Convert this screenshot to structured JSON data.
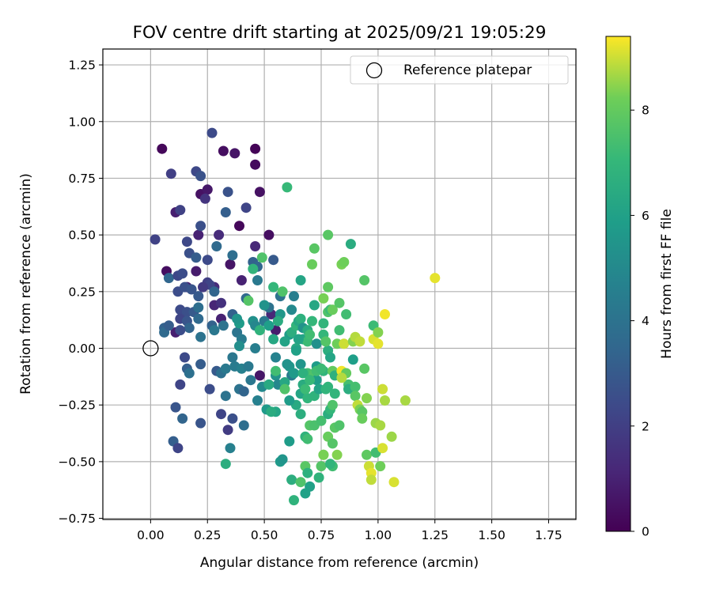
{
  "chart_data": {
    "type": "scatter",
    "title": "FOV centre drift starting at 2025/09/21 19:05:29",
    "xlabel": "Angular distance from reference (arcmin)",
    "ylabel": "Rotation from reference (arcmin)",
    "xlim": [
      -0.21,
      1.87
    ],
    "ylim": [
      -0.755,
      1.32
    ],
    "xticks": [
      0.0,
      0.25,
      0.5,
      0.75,
      1.0,
      1.25,
      1.5,
      1.75
    ],
    "xtick_labels": [
      "0.00",
      "0.25",
      "0.50",
      "0.75",
      "1.00",
      "1.25",
      "1.50",
      "1.75"
    ],
    "yticks": [
      -0.75,
      -0.5,
      -0.25,
      0.0,
      0.25,
      0.5,
      0.75,
      1.0,
      1.25
    ],
    "ytick_labels": [
      "−0.75",
      "−0.50",
      "−0.25",
      "0.00",
      "0.25",
      "0.50",
      "0.75",
      "1.00",
      "1.25"
    ],
    "grid": true,
    "legend": {
      "location": "top-right",
      "entries": [
        "Reference platepar"
      ]
    },
    "reference_point": {
      "x": 0.0,
      "y": 0.0,
      "marker": "open-circle"
    },
    "colorbar": {
      "label": "Hours from first FF file",
      "colormap": "viridis",
      "range": [
        0,
        9.4
      ],
      "ticks": [
        0,
        2,
        4,
        6,
        8
      ],
      "tick_labels": [
        "0",
        "2",
        "4",
        "6",
        "8"
      ]
    },
    "points_format": [
      "x",
      "y",
      "hours"
    ],
    "points": [
      [
        0.05,
        0.88,
        0.2
      ],
      [
        0.32,
        0.87,
        0.4
      ],
      [
        0.37,
        0.86,
        0.6
      ],
      [
        0.46,
        0.81,
        0.3
      ],
      [
        0.46,
        0.88,
        0.1
      ],
      [
        0.48,
        0.69,
        0.5
      ],
      [
        0.39,
        0.54,
        0.2
      ],
      [
        0.22,
        0.68,
        0.5
      ],
      [
        0.25,
        0.7,
        0.7
      ],
      [
        0.52,
        0.5,
        0.4
      ],
      [
        0.07,
        0.34,
        0.4
      ],
      [
        0.11,
        0.6,
        0.9
      ],
      [
        0.2,
        0.34,
        0.8
      ],
      [
        0.16,
        0.27,
        1.0
      ],
      [
        0.28,
        0.27,
        1.3
      ],
      [
        0.35,
        0.37,
        0.6
      ],
      [
        0.21,
        0.5,
        1.0
      ],
      [
        0.3,
        0.5,
        1.3
      ],
      [
        0.46,
        0.45,
        1.2
      ],
      [
        0.28,
        0.19,
        1.1
      ],
      [
        0.31,
        0.13,
        1.0
      ],
      [
        0.11,
        0.07,
        0.9
      ],
      [
        0.48,
        -0.12,
        0.6
      ],
      [
        0.4,
        0.3,
        1.0
      ],
      [
        0.53,
        0.15,
        1.2
      ],
      [
        0.55,
        0.08,
        0.8
      ],
      [
        0.27,
        0.95,
        2.4
      ],
      [
        0.09,
        0.77,
        2.0
      ],
      [
        0.2,
        0.78,
        2.3
      ],
      [
        0.22,
        0.76,
        2.7
      ],
      [
        0.13,
        0.61,
        2.1
      ],
      [
        0.24,
        0.66,
        1.6
      ],
      [
        0.34,
        0.69,
        2.7
      ],
      [
        0.42,
        0.62,
        2.2
      ],
      [
        0.22,
        0.54,
        2.6
      ],
      [
        0.33,
        0.6,
        3.2
      ],
      [
        0.02,
        0.48,
        2.1
      ],
      [
        0.16,
        0.47,
        2.3
      ],
      [
        0.17,
        0.42,
        2.6
      ],
      [
        0.2,
        0.4,
        3.1
      ],
      [
        0.25,
        0.39,
        2.4
      ],
      [
        0.29,
        0.45,
        3.6
      ],
      [
        0.36,
        0.41,
        3.8
      ],
      [
        0.45,
        0.38,
        3.3
      ],
      [
        0.47,
        0.36,
        3.5
      ],
      [
        0.54,
        0.39,
        3.0
      ],
      [
        0.08,
        0.31,
        3.5
      ],
      [
        0.12,
        0.32,
        2.3
      ],
      [
        0.14,
        0.33,
        2.5
      ],
      [
        0.12,
        0.25,
        2.5
      ],
      [
        0.15,
        0.27,
        2.6
      ],
      [
        0.18,
        0.26,
        2.8
      ],
      [
        0.21,
        0.23,
        3.0
      ],
      [
        0.25,
        0.29,
        2.0
      ],
      [
        0.26,
        0.28,
        2.2
      ],
      [
        0.28,
        0.25,
        3.4
      ],
      [
        0.31,
        0.2,
        1.5
      ],
      [
        0.36,
        0.15,
        3.3
      ],
      [
        0.42,
        0.22,
        3.6
      ],
      [
        0.47,
        0.3,
        4.3
      ],
      [
        0.13,
        0.17,
        2.4
      ],
      [
        0.16,
        0.16,
        2.6
      ],
      [
        0.19,
        0.16,
        3.0
      ],
      [
        0.21,
        0.18,
        3.8
      ],
      [
        0.13,
        0.13,
        2.2
      ],
      [
        0.16,
        0.12,
        2.8
      ],
      [
        0.21,
        0.13,
        3.6
      ],
      [
        0.06,
        0.09,
        3.3
      ],
      [
        0.06,
        0.07,
        3.6
      ],
      [
        0.22,
        0.05,
        4.0
      ],
      [
        0.27,
        0.1,
        3.3
      ],
      [
        0.28,
        0.08,
        4.2
      ],
      [
        0.32,
        0.1,
        4.0
      ],
      [
        0.38,
        0.07,
        4.1
      ],
      [
        0.4,
        0.04,
        4.4
      ],
      [
        0.15,
        -0.04,
        2.4
      ],
      [
        0.16,
        -0.09,
        3.2
      ],
      [
        0.17,
        -0.11,
        3.9
      ],
      [
        0.13,
        -0.16,
        2.2
      ],
      [
        0.22,
        -0.07,
        3.1
      ],
      [
        0.29,
        -0.1,
        3.0
      ],
      [
        0.31,
        -0.11,
        3.9
      ],
      [
        0.33,
        -0.09,
        4.3
      ],
      [
        0.37,
        -0.08,
        4.4
      ],
      [
        0.26,
        -0.18,
        2.5
      ],
      [
        0.33,
        -0.21,
        4.0
      ],
      [
        0.39,
        -0.18,
        4.0
      ],
      [
        0.41,
        -0.19,
        3.4
      ],
      [
        0.44,
        -0.14,
        4.2
      ],
      [
        0.47,
        -0.23,
        4.6
      ],
      [
        0.11,
        -0.26,
        2.8
      ],
      [
        0.1,
        -0.41,
        3.2
      ],
      [
        0.14,
        -0.31,
        3.4
      ],
      [
        0.12,
        -0.44,
        2.2
      ],
      [
        0.22,
        -0.33,
        2.8
      ],
      [
        0.31,
        -0.29,
        2.2
      ],
      [
        0.34,
        -0.36,
        1.9
      ],
      [
        0.36,
        -0.31,
        2.6
      ],
      [
        0.41,
        -0.34,
        3.8
      ],
      [
        0.35,
        -0.44,
        4.6
      ],
      [
        0.33,
        -0.51,
        6.6
      ],
      [
        0.39,
        0.01,
        5.2
      ],
      [
        0.39,
        0.11,
        5.8
      ],
      [
        0.43,
        0.21,
        7.7
      ],
      [
        0.45,
        0.12,
        5.3
      ],
      [
        0.46,
        0.1,
        4.9
      ],
      [
        0.45,
        0.35,
        6.9
      ],
      [
        0.46,
        0.0,
        4.5
      ],
      [
        0.48,
        0.08,
        6.8
      ],
      [
        0.49,
        0.4,
        7.6
      ],
      [
        0.52,
        0.18,
        4.0
      ],
      [
        0.54,
        0.27,
        7.0
      ],
      [
        0.54,
        0.04,
        6.3
      ],
      [
        0.55,
        -0.04,
        4.7
      ],
      [
        0.55,
        -0.12,
        5.4
      ],
      [
        0.56,
        -0.16,
        4.9
      ],
      [
        0.55,
        -0.1,
        7.3
      ],
      [
        0.55,
        -0.28,
        6.2
      ],
      [
        0.57,
        0.15,
        5.6
      ],
      [
        0.57,
        0.23,
        4.0
      ],
      [
        0.58,
        0.25,
        7.6
      ],
      [
        0.6,
        0.71,
        7.1
      ],
      [
        0.61,
        -0.08,
        5.6
      ],
      [
        0.61,
        0.06,
        5.8
      ],
      [
        0.62,
        -0.12,
        4.4
      ],
      [
        0.63,
        0.23,
        4.5
      ],
      [
        0.62,
        0.17,
        5.0
      ],
      [
        0.62,
        0.07,
        6.6
      ],
      [
        0.64,
        0.1,
        6.9
      ],
      [
        0.64,
        0.0,
        6.4
      ],
      [
        0.64,
        -0.01,
        6.0
      ],
      [
        0.65,
        0.12,
        6.3
      ],
      [
        0.66,
        0.3,
        6.2
      ],
      [
        0.66,
        0.13,
        6.7
      ],
      [
        0.66,
        -0.07,
        5.5
      ],
      [
        0.66,
        -0.2,
        6.2
      ],
      [
        0.66,
        -0.29,
        6.6
      ],
      [
        0.67,
        0.09,
        5.4
      ],
      [
        0.67,
        0.04,
        6.2
      ],
      [
        0.67,
        -0.16,
        6.5
      ],
      [
        0.68,
        -0.39,
        6.8
      ],
      [
        0.68,
        -0.52,
        7.8
      ],
      [
        0.69,
        0.08,
        6.5
      ],
      [
        0.69,
        0.03,
        7.2
      ],
      [
        0.69,
        -0.11,
        7.3
      ],
      [
        0.69,
        -0.22,
        6.9
      ],
      [
        0.69,
        -0.4,
        7.3
      ],
      [
        0.7,
        -0.34,
        7.7
      ],
      [
        0.7,
        -0.61,
        6.0
      ],
      [
        0.71,
        0.12,
        7.0
      ],
      [
        0.71,
        0.37,
        8.1
      ],
      [
        0.72,
        0.44,
        7.8
      ],
      [
        0.72,
        0.19,
        6.3
      ],
      [
        0.72,
        -0.11,
        7.6
      ],
      [
        0.72,
        -0.21,
        6.8
      ],
      [
        0.72,
        -0.34,
        7.5
      ],
      [
        0.73,
        0.02,
        5.3
      ],
      [
        0.73,
        -0.08,
        5.8
      ],
      [
        0.73,
        -0.14,
        5.8
      ],
      [
        0.74,
        -0.18,
        6.1
      ],
      [
        0.75,
        -0.32,
        7.4
      ],
      [
        0.75,
        -0.52,
        7.7
      ],
      [
        0.76,
        0.11,
        6.9
      ],
      [
        0.76,
        0.06,
        7.0
      ],
      [
        0.76,
        0.22,
        8.3
      ],
      [
        0.76,
        -0.1,
        6.9
      ],
      [
        0.76,
        -0.47,
        8.0
      ],
      [
        0.77,
        -0.18,
        6.9
      ],
      [
        0.78,
        0.5,
        7.8
      ],
      [
        0.78,
        0.27,
        7.9
      ],
      [
        0.78,
        0.16,
        7.6
      ],
      [
        0.78,
        -0.01,
        6.6
      ],
      [
        0.78,
        -0.17,
        6.9
      ],
      [
        0.78,
        -0.29,
        6.6
      ],
      [
        0.78,
        -0.39,
        8.1
      ],
      [
        0.79,
        0.17,
        7.2
      ],
      [
        0.79,
        -0.04,
        6.2
      ],
      [
        0.79,
        -0.27,
        7.0
      ],
      [
        0.8,
        0.17,
        8.1
      ],
      [
        0.8,
        -0.1,
        8.0
      ],
      [
        0.8,
        -0.25,
        7.6
      ],
      [
        0.8,
        -0.42,
        7.7
      ],
      [
        0.8,
        -0.52,
        7.3
      ],
      [
        0.81,
        -0.12,
        6.7
      ],
      [
        0.81,
        -0.2,
        6.9
      ],
      [
        0.81,
        -0.35,
        7.8
      ],
      [
        0.82,
        0.02,
        8.2
      ],
      [
        0.82,
        -0.47,
        8.4
      ],
      [
        0.83,
        0.2,
        7.7
      ],
      [
        0.83,
        0.08,
        7.3
      ],
      [
        0.83,
        -0.34,
        7.6
      ],
      [
        0.84,
        -0.1,
        9.3
      ],
      [
        0.84,
        0.37,
        8.3
      ],
      [
        0.85,
        0.38,
        8.2
      ],
      [
        0.85,
        0.02,
        9.0
      ],
      [
        0.86,
        -0.11,
        8.0
      ],
      [
        0.86,
        0.15,
        7.3
      ],
      [
        0.87,
        -0.16,
        7.4
      ],
      [
        0.87,
        -0.18,
        6.6
      ],
      [
        0.88,
        0.46,
        6.5
      ],
      [
        0.89,
        0.03,
        8.4
      ],
      [
        0.89,
        -0.05,
        5.9
      ],
      [
        0.9,
        0.05,
        8.8
      ],
      [
        0.9,
        -0.17,
        7.4
      ],
      [
        0.9,
        -0.21,
        7.8
      ],
      [
        0.91,
        -0.25,
        8.9
      ],
      [
        0.92,
        0.03,
        8.9
      ],
      [
        0.92,
        -0.27,
        8.3
      ],
      [
        0.93,
        -0.28,
        7.8
      ],
      [
        0.93,
        -0.31,
        8.1
      ],
      [
        0.94,
        -0.09,
        7.8
      ],
      [
        0.94,
        0.3,
        7.7
      ],
      [
        0.95,
        -0.22,
        8.4
      ],
      [
        0.95,
        -0.47,
        7.9
      ],
      [
        0.96,
        -0.52,
        9.0
      ],
      [
        0.97,
        -0.55,
        9.2
      ],
      [
        0.97,
        -0.58,
        8.9
      ],
      [
        0.98,
        0.04,
        9.1
      ],
      [
        0.98,
        0.1,
        7.2
      ],
      [
        0.99,
        -0.33,
        8.6
      ],
      [
        0.99,
        -0.46,
        7.3
      ],
      [
        1.0,
        0.07,
        8.4
      ],
      [
        1.0,
        0.02,
        9.2
      ],
      [
        1.01,
        -0.34,
        8.7
      ],
      [
        1.01,
        -0.52,
        8.2
      ],
      [
        1.02,
        -0.18,
        9.0
      ],
      [
        1.02,
        -0.44,
        9.1
      ],
      [
        1.03,
        0.15,
        9.3
      ],
      [
        1.03,
        -0.23,
        8.7
      ],
      [
        1.06,
        -0.39,
        8.6
      ],
      [
        1.07,
        -0.59,
        9.1
      ],
      [
        1.12,
        -0.23,
        8.7
      ],
      [
        1.25,
        0.31,
        9.2
      ],
      [
        0.57,
        -0.5,
        5.7
      ],
      [
        0.58,
        -0.49,
        5.5
      ],
      [
        0.61,
        -0.41,
        5.8
      ],
      [
        0.62,
        -0.58,
        6.6
      ],
      [
        0.63,
        -0.67,
        6.8
      ],
      [
        0.66,
        -0.59,
        7.6
      ],
      [
        0.68,
        -0.64,
        6.0
      ],
      [
        0.69,
        -0.55,
        6.7
      ],
      [
        0.74,
        -0.57,
        6.8
      ],
      [
        0.76,
        -0.47,
        8.3
      ],
      [
        0.79,
        -0.51,
        6.9
      ],
      [
        0.64,
        -0.25,
        6.4
      ],
      [
        0.61,
        -0.23,
        5.8
      ],
      [
        0.51,
        -0.27,
        5.7
      ],
      [
        0.53,
        -0.28,
        6.5
      ],
      [
        0.49,
        -0.17,
        5.0
      ],
      [
        0.52,
        -0.16,
        6.4
      ],
      [
        0.59,
        -0.15,
        6.3
      ],
      [
        0.59,
        -0.18,
        7.6
      ],
      [
        0.6,
        -0.07,
        5.4
      ],
      [
        0.63,
        -0.11,
        5.7
      ],
      [
        0.67,
        -0.11,
        6.7
      ],
      [
        0.68,
        -0.18,
        7.2
      ],
      [
        0.7,
        -0.14,
        7.1
      ],
      [
        0.73,
        -0.1,
        7.3
      ],
      [
        0.75,
        -0.09,
        7.2
      ],
      [
        0.84,
        -0.13,
        8.8
      ],
      [
        0.65,
        0.04,
        6.1
      ],
      [
        0.7,
        0.06,
        7.3
      ],
      [
        0.77,
        0.03,
        7.7
      ],
      [
        0.59,
        0.03,
        6.1
      ],
      [
        0.56,
        0.12,
        6.5
      ],
      [
        0.5,
        0.19,
        5.4
      ],
      [
        0.5,
        0.12,
        4.3
      ],
      [
        0.52,
        0.1,
        5.9
      ],
      [
        0.4,
        -0.09,
        4.6
      ],
      [
        0.43,
        -0.08,
        4.3
      ],
      [
        0.36,
        -0.04,
        4.2
      ],
      [
        0.38,
        0.13,
        5.5
      ],
      [
        0.23,
        0.27,
        1.8
      ],
      [
        0.17,
        0.09,
        3.4
      ],
      [
        0.08,
        0.1,
        3.1
      ],
      [
        0.13,
        0.08,
        2.5
      ]
    ]
  }
}
